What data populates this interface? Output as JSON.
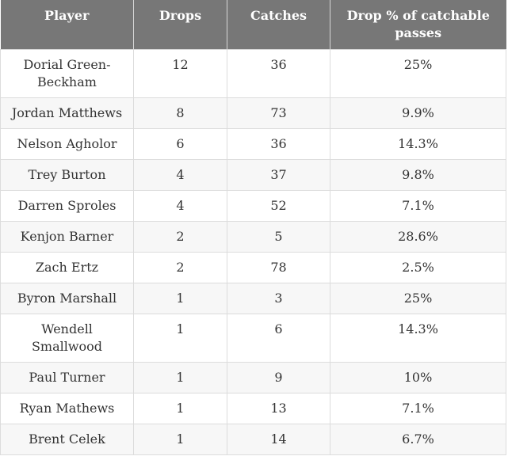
{
  "table": {
    "headers": {
      "player": "Player",
      "drops": "Drops",
      "catches": "Catches",
      "drop_pct": "Drop % of catchable passes"
    },
    "rows": [
      {
        "player": "Dorial Green-Beckham",
        "drops": "12",
        "catches": "36",
        "drop_pct": "25%"
      },
      {
        "player": "Jordan Matthews",
        "drops": "8",
        "catches": "73",
        "drop_pct": "9.9%"
      },
      {
        "player": "Nelson Agholor",
        "drops": "6",
        "catches": "36",
        "drop_pct": "14.3%"
      },
      {
        "player": "Trey Burton",
        "drops": "4",
        "catches": "37",
        "drop_pct": "9.8%"
      },
      {
        "player": "Darren Sproles",
        "drops": "4",
        "catches": "52",
        "drop_pct": "7.1%"
      },
      {
        "player": "Kenjon Barner",
        "drops": "2",
        "catches": "5",
        "drop_pct": "28.6%"
      },
      {
        "player": "Zach Ertz",
        "drops": "2",
        "catches": "78",
        "drop_pct": "2.5%"
      },
      {
        "player": "Byron Marshall",
        "drops": "1",
        "catches": "3",
        "drop_pct": "25%"
      },
      {
        "player": "Wendell Smallwood",
        "drops": "1",
        "catches": "6",
        "drop_pct": "14.3%"
      },
      {
        "player": "Paul Turner",
        "drops": "1",
        "catches": "9",
        "drop_pct": "10%"
      },
      {
        "player": "Ryan Mathews",
        "drops": "1",
        "catches": "13",
        "drop_pct": "7.1%"
      },
      {
        "player": "Brent Celek",
        "drops": "1",
        "catches": "14",
        "drop_pct": "6.7%"
      }
    ]
  },
  "colors": {
    "header_bg": "#777777",
    "header_text": "#ffffff",
    "row_alt_bg": "#f7f7f7",
    "cell_text": "#333333",
    "border": "#dcdcdc"
  }
}
